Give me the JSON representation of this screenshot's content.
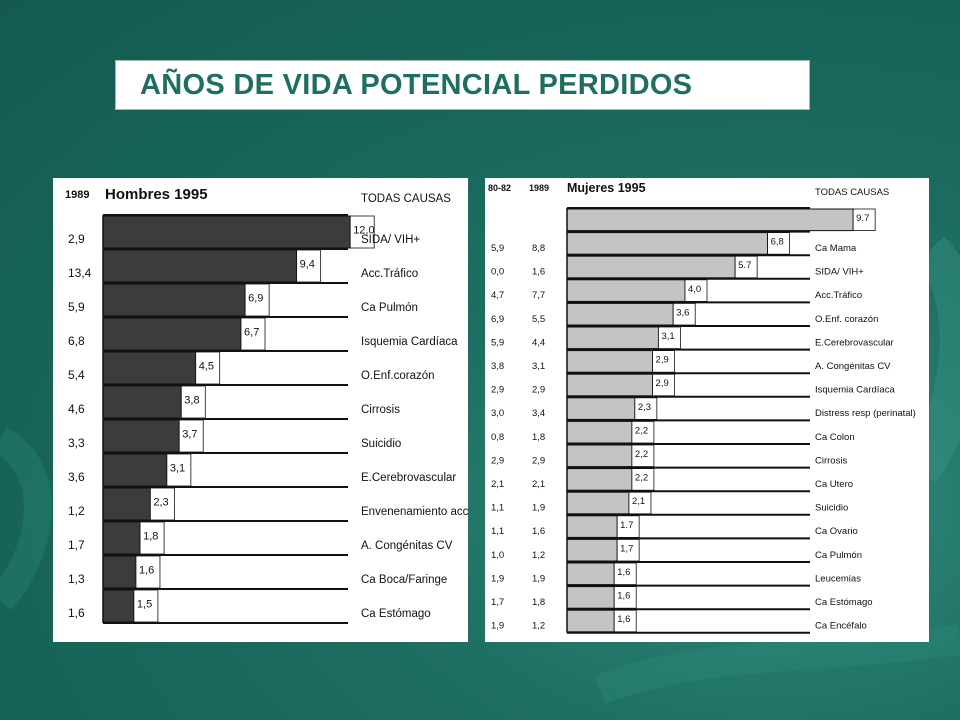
{
  "slide": {
    "title": "AÑOS DE VIDA POTENCIAL PERDIDOS",
    "colors": {
      "background": "#1a6b5f",
      "title": "#1f6e62"
    }
  },
  "chart_data": [
    {
      "type": "bar",
      "orientation": "horizontal",
      "title": "Hombres 1995",
      "year_columns": [
        "1989"
      ],
      "header_label": "TODAS CAUSAS",
      "bar_color": "#3c3c3c",
      "xlim": [
        0,
        15
      ],
      "total": {
        "label": "TODAS CAUSAS",
        "value": null
      },
      "categories": [
        "SIDA/ VIH+",
        "Acc.Tráfico",
        "Ca Pulmón",
        "Isquemia Cardíaca",
        "O.Enf.corazón",
        "Cirrosis",
        "Suicidio",
        "E.Cerebrovascular",
        "Envenenamiento  acc.",
        "A. Congénitas CV",
        "Ca Boca/Faringe",
        "Ca Estómago"
      ],
      "values": [
        12.0,
        9.4,
        6.9,
        6.7,
        4.5,
        3.8,
        3.7,
        3.1,
        2.3,
        1.8,
        1.6,
        1.5
      ],
      "value_labels": [
        "12,0",
        "9,4",
        "6,9",
        "6,7",
        "4,5",
        "3,8",
        "3,7",
        "3,1",
        "2,3",
        "1,8",
        "1,6",
        "1,5"
      ],
      "columns": [
        [
          "2,9",
          "13,4",
          "5,9",
          "6,8",
          "5,4",
          "4,6",
          "3,3",
          "3,6",
          "1,2",
          "1,7",
          "1,3",
          "1,6"
        ]
      ]
    },
    {
      "type": "bar",
      "orientation": "horizontal",
      "title": "Mujeres 1995",
      "year_columns": [
        "80-82",
        "1989"
      ],
      "header_label": "TODAS CAUSAS",
      "bar_color": "#c4c4c4",
      "xlim": [
        0,
        12
      ],
      "total": {
        "label": "TODAS CAUSAS",
        "value": 9.7,
        "value_label": "9.7"
      },
      "categories": [
        "Ca Mama",
        "SIDA/ VIH+",
        "Acc.Tráfico",
        "O.Enf. corazón",
        "E.Cerebrovascular",
        "A. Congénitas CV",
        "Isquemia Cardíaca",
        "Distress resp (perinatal)",
        "Ca Colon",
        "Cirrosis",
        "Ca Utero",
        "Suicidio",
        "Ca Ovario",
        "Ca Pulmón",
        "Leucemias",
        "Ca Estómago",
        "Ca Encéfalo"
      ],
      "values": [
        6.8,
        5.7,
        4.0,
        3.6,
        3.1,
        2.9,
        2.9,
        2.3,
        2.2,
        2.2,
        2.2,
        2.1,
        1.7,
        1.7,
        1.6,
        1.6,
        1.6
      ],
      "value_labels": [
        "6,8",
        "5.7",
        "4,0",
        "3,6",
        "3,1",
        "2,9",
        "2,9",
        "2,3",
        "2,2",
        "2,2",
        "2,2",
        "2,1",
        "1.7",
        "1,7",
        "1,6",
        "1,6",
        "1,6"
      ],
      "columns": [
        [
          "5,9",
          "0,0",
          "4,7",
          "6,9",
          "5,9",
          "3,8",
          "2,9",
          "3,0",
          "0,8",
          "2,9",
          "2,1",
          "1,1",
          "1,1",
          "1,0",
          "1,9",
          "1,7",
          "1,9"
        ],
        [
          "8,8",
          "1,6",
          "7,7",
          "5,5",
          "4,4",
          "3,1",
          "2,9",
          "3,4",
          "1,8",
          "2,9",
          "2,1",
          "1,9",
          "1,6",
          "1,2",
          "1,9",
          "1,8",
          "1,2"
        ]
      ]
    }
  ]
}
